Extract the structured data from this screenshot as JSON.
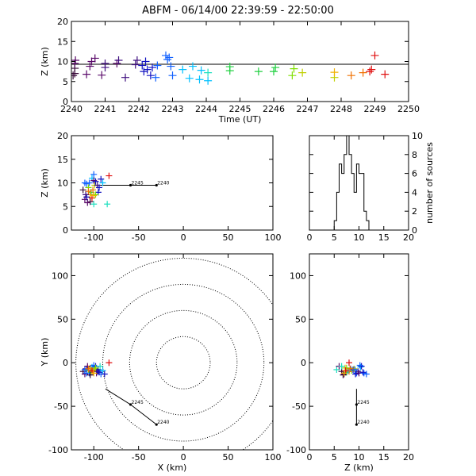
{
  "title": "ABFM - 06/14/00 22:39:59 - 22:50:00",
  "colors": {
    "plus_palette": [
      "#3a0a3a",
      "#5a0a6a",
      "#401080",
      "#1010c0",
      "#1060ff",
      "#00c0ff",
      "#20e0c0",
      "#20d040",
      "#80e000",
      "#c0d000",
      "#f0b000",
      "#f07000",
      "#e01010"
    ],
    "line": "#000000"
  },
  "chart_data": [
    {
      "id": "time-height",
      "type": "scatter",
      "xlabel": "Time (UT)",
      "ylabel": "Z (km)",
      "xlim": [
        2240,
        2250
      ],
      "ylim": [
        0,
        20
      ],
      "xticks": [
        "2240",
        "2241",
        "2242",
        "2243",
        "2244",
        "2245",
        "2246",
        "2247",
        "2248",
        "2249",
        "2250"
      ],
      "yticks": [
        "0",
        "5",
        "10",
        "15",
        "20"
      ],
      "hline": 9.3,
      "points": [
        [
          2240.05,
          6.5,
          0
        ],
        [
          2240.1,
          7.0,
          0
        ],
        [
          2240.1,
          8.3,
          0
        ],
        [
          2240.1,
          9.5,
          1
        ],
        [
          2240.12,
          10.3,
          1
        ],
        [
          2240.45,
          6.8,
          1
        ],
        [
          2240.55,
          8.8,
          1
        ],
        [
          2240.6,
          10.0,
          1
        ],
        [
          2240.7,
          10.8,
          1
        ],
        [
          2240.9,
          6.6,
          1
        ],
        [
          2241.0,
          8.5,
          2
        ],
        [
          2241.0,
          9.5,
          2
        ],
        [
          2241.35,
          9.5,
          1
        ],
        [
          2241.4,
          10.3,
          2
        ],
        [
          2241.6,
          6.0,
          2
        ],
        [
          2241.9,
          9.2,
          2
        ],
        [
          2241.95,
          10.3,
          2
        ],
        [
          2242.1,
          9.0,
          3
        ],
        [
          2242.15,
          7.5,
          3
        ],
        [
          2242.2,
          10.0,
          3
        ],
        [
          2242.25,
          8.0,
          3
        ],
        [
          2242.35,
          6.5,
          3
        ],
        [
          2242.4,
          8.5,
          3
        ],
        [
          2242.5,
          6.0,
          4
        ],
        [
          2242.55,
          9.0,
          4
        ],
        [
          2242.8,
          11.5,
          4
        ],
        [
          2242.85,
          10.5,
          4
        ],
        [
          2242.9,
          11.0,
          4
        ],
        [
          2242.95,
          8.8,
          4
        ],
        [
          2243.0,
          6.5,
          4
        ],
        [
          2243.3,
          8.0,
          5
        ],
        [
          2243.5,
          5.8,
          5
        ],
        [
          2243.6,
          8.8,
          5
        ],
        [
          2243.8,
          5.5,
          5
        ],
        [
          2243.85,
          7.8,
          5
        ],
        [
          2244.05,
          5.2,
          5
        ],
        [
          2244.05,
          7.2,
          6
        ],
        [
          2244.7,
          7.7,
          7
        ],
        [
          2244.7,
          8.7,
          7
        ],
        [
          2245.55,
          7.5,
          7
        ],
        [
          2246.0,
          7.5,
          7
        ],
        [
          2246.05,
          8.5,
          7
        ],
        [
          2246.55,
          6.5,
          8
        ],
        [
          2246.6,
          8.2,
          8
        ],
        [
          2246.85,
          7.2,
          9
        ],
        [
          2247.8,
          6.0,
          9
        ],
        [
          2247.8,
          7.3,
          10
        ],
        [
          2248.3,
          6.5,
          11
        ],
        [
          2248.65,
          7.2,
          11
        ],
        [
          2248.85,
          7.5,
          12
        ],
        [
          2248.9,
          8.0,
          12
        ],
        [
          2249.0,
          11.5,
          12
        ],
        [
          2249.3,
          6.8,
          12
        ]
      ]
    },
    {
      "id": "x-z",
      "type": "scatter",
      "xlabel": "",
      "ylabel": "Z (km)",
      "xlim": [
        -125,
        100
      ],
      "ylim": [
        0,
        20
      ],
      "xticks": [
        "-100",
        "-50",
        "0",
        "50",
        "100"
      ],
      "yticks": [
        "0",
        "5",
        "10",
        "15",
        "20"
      ],
      "markers": [
        {
          "label": "2245",
          "x": -59,
          "y": 9.5
        },
        {
          "label": "2240",
          "x": -30,
          "y": 9.5
        }
      ],
      "points": [
        [
          -112,
          8.5,
          0
        ],
        [
          -110,
          6.5,
          1
        ],
        [
          -108,
          7.0,
          3
        ],
        [
          -105,
          10.0,
          4
        ],
        [
          -102,
          11.0,
          5
        ],
        [
          -100,
          5.5,
          6
        ],
        [
          -103,
          8.0,
          7
        ],
        [
          -106,
          9.0,
          8
        ],
        [
          -99,
          9.5,
          9
        ],
        [
          -104,
          7.5,
          10
        ],
        [
          -101,
          8.5,
          11
        ],
        [
          -100,
          10.5,
          1
        ],
        [
          -98,
          10.3,
          3
        ],
        [
          -96,
          9.5,
          2
        ],
        [
          -104,
          6.0,
          0
        ],
        [
          -108,
          9.8,
          4
        ],
        [
          -95,
          8.0,
          3
        ],
        [
          -85,
          5.5,
          6
        ],
        [
          -100,
          11.8,
          4
        ],
        [
          -90,
          10.0,
          5
        ],
        [
          -110,
          10.0,
          4
        ],
        [
          -107,
          5.8,
          1
        ],
        [
          -98,
          7.5,
          8
        ],
        [
          -102,
          6.8,
          12
        ],
        [
          -94,
          9.0,
          3
        ],
        [
          -106,
          8.2,
          11
        ],
        [
          -100,
          7.3,
          10
        ],
        [
          -109,
          7.5,
          2
        ],
        [
          -92,
          10.8,
          3
        ],
        [
          -83,
          11.5,
          12
        ]
      ]
    },
    {
      "id": "histogram",
      "type": "bar",
      "xlabel": "",
      "ylabel": "number of sources",
      "xlim": [
        0,
        20
      ],
      "ylim": [
        0,
        10
      ],
      "xticks": [
        "0",
        "5",
        "10",
        "15",
        "20"
      ],
      "yticks": [
        "0",
        "2",
        "4",
        "6",
        "8",
        "10"
      ],
      "bin_width": 0.5,
      "bins": [
        [
          5.0,
          1
        ],
        [
          5.5,
          4
        ],
        [
          6.0,
          7
        ],
        [
          6.5,
          6
        ],
        [
          7.0,
          8
        ],
        [
          7.5,
          10
        ],
        [
          8.0,
          8
        ],
        [
          8.5,
          6
        ],
        [
          9.0,
          4
        ],
        [
          9.5,
          7
        ],
        [
          10.0,
          6
        ],
        [
          10.5,
          6
        ],
        [
          11.0,
          2
        ],
        [
          11.5,
          1
        ]
      ]
    },
    {
      "id": "x-y",
      "type": "scatter",
      "xlabel": "X (km)",
      "ylabel": "Y (km)",
      "xlim": [
        -125,
        100
      ],
      "ylim": [
        -100,
        125
      ],
      "xticks": [
        "-100",
        "-50",
        "0",
        "50",
        "100"
      ],
      "yticks": [
        "-100",
        "-50",
        "0",
        "50",
        "100"
      ],
      "range_rings_km": [
        30,
        60,
        90,
        120
      ],
      "track": [
        [
          -87,
          -30
        ],
        [
          -59,
          -48
        ],
        [
          -30,
          -71
        ]
      ],
      "markers": [
        {
          "label": "2245",
          "x": -59,
          "y": -48
        },
        {
          "label": "2240",
          "x": -30,
          "y": -71
        }
      ],
      "points": [
        [
          -112,
          -10,
          0
        ],
        [
          -110,
          -13,
          1
        ],
        [
          -108,
          -7,
          3
        ],
        [
          -105,
          -12,
          4
        ],
        [
          -102,
          -5,
          5
        ],
        [
          -100,
          -8,
          6
        ],
        [
          -103,
          -11,
          7
        ],
        [
          -106,
          -9,
          8
        ],
        [
          -99,
          -7,
          9
        ],
        [
          -104,
          -6,
          10
        ],
        [
          -101,
          -10,
          11
        ],
        [
          -97,
          -12,
          1
        ],
        [
          -98,
          -4,
          3
        ],
        [
          -96,
          -10,
          2
        ],
        [
          -104,
          -14,
          0
        ],
        [
          -108,
          -12,
          4
        ],
        [
          -95,
          -8,
          3
        ],
        [
          -92,
          -13,
          4
        ],
        [
          -100,
          -3,
          4
        ],
        [
          -90,
          -9,
          5
        ],
        [
          -110,
          -8,
          4
        ],
        [
          -107,
          -4,
          1
        ],
        [
          -98,
          -6,
          8
        ],
        [
          -102,
          -9,
          12
        ],
        [
          -94,
          -11,
          3
        ],
        [
          -106,
          -7,
          11
        ],
        [
          -100,
          -12,
          10
        ],
        [
          -88,
          -13,
          3
        ],
        [
          -93,
          -4,
          6
        ],
        [
          -83,
          0,
          12
        ]
      ]
    },
    {
      "id": "z-y",
      "type": "scatter",
      "xlabel": "Z (km)",
      "ylabel": "",
      "xlim": [
        0,
        20
      ],
      "ylim": [
        -100,
        125
      ],
      "xticks": [
        "0",
        "5",
        "10",
        "15",
        "20"
      ],
      "yticks": [
        "-100",
        "-50",
        "0",
        "50",
        "100"
      ],
      "track": [
        [
          9.5,
          -30
        ],
        [
          9.5,
          -71
        ]
      ],
      "markers": [
        {
          "label": "2245",
          "x": 9.5,
          "y": -48
        },
        {
          "label": "2240",
          "x": 9.5,
          "y": -71
        }
      ],
      "points": [
        [
          6.5,
          -10,
          0
        ],
        [
          7.0,
          -13,
          1
        ],
        [
          8.3,
          -7,
          3
        ],
        [
          9.5,
          -12,
          4
        ],
        [
          10.3,
          -5,
          5
        ],
        [
          5.5,
          -8,
          6
        ],
        [
          7.5,
          -11,
          7
        ],
        [
          8.5,
          -9,
          8
        ],
        [
          9.0,
          -7,
          9
        ],
        [
          7.2,
          -6,
          10
        ],
        [
          8.0,
          -10,
          11
        ],
        [
          10.0,
          -12,
          1
        ],
        [
          10.5,
          -4,
          3
        ],
        [
          9.8,
          -10,
          2
        ],
        [
          6.8,
          -14,
          0
        ],
        [
          11.0,
          -12,
          4
        ],
        [
          8.8,
          -8,
          3
        ],
        [
          11.5,
          -13,
          4
        ],
        [
          10.2,
          -3,
          4
        ],
        [
          7.8,
          -9,
          5
        ],
        [
          9.2,
          -8,
          4
        ],
        [
          6.0,
          -4,
          1
        ],
        [
          7.5,
          -6,
          8
        ],
        [
          7.3,
          -9,
          12
        ],
        [
          10.8,
          -11,
          3
        ],
        [
          8.2,
          -7,
          11
        ],
        [
          7.0,
          -12,
          10
        ],
        [
          9.3,
          -13,
          3
        ],
        [
          6.5,
          -4,
          6
        ],
        [
          8.0,
          0,
          12
        ]
      ]
    }
  ]
}
